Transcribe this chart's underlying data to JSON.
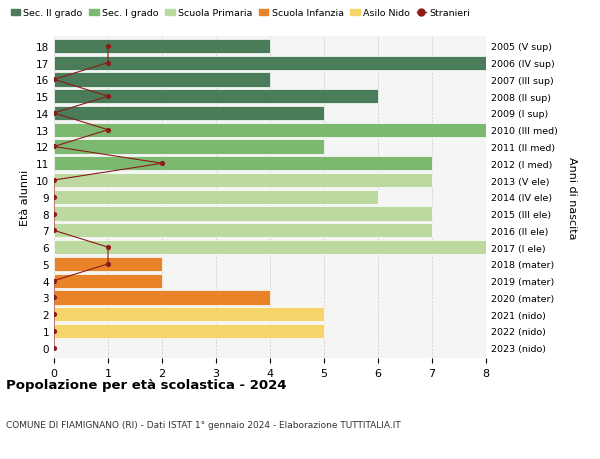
{
  "ages": [
    18,
    17,
    16,
    15,
    14,
    13,
    12,
    11,
    10,
    9,
    8,
    7,
    6,
    5,
    4,
    3,
    2,
    1,
    0
  ],
  "right_labels": [
    "2005 (V sup)",
    "2006 (IV sup)",
    "2007 (III sup)",
    "2008 (II sup)",
    "2009 (I sup)",
    "2010 (III med)",
    "2011 (II med)",
    "2012 (I med)",
    "2013 (V ele)",
    "2014 (IV ele)",
    "2015 (III ele)",
    "2016 (II ele)",
    "2017 (I ele)",
    "2018 (mater)",
    "2019 (mater)",
    "2020 (mater)",
    "2021 (nido)",
    "2022 (nido)",
    "2023 (nido)"
  ],
  "bar_values": [
    4,
    8,
    4,
    6,
    5,
    8,
    5,
    7,
    7,
    6,
    7,
    7,
    8,
    2,
    2,
    4,
    5,
    5,
    0
  ],
  "stranieri_x": [
    1,
    1,
    0,
    1,
    0,
    1,
    0,
    2,
    0,
    0,
    0,
    0,
    1,
    1,
    0,
    0,
    0,
    0,
    0
  ],
  "bar_colors": [
    "#4a7c59",
    "#4a7c59",
    "#4a7c59",
    "#4a7c59",
    "#4a7c59",
    "#7db870",
    "#7db870",
    "#7db870",
    "#bcd9a0",
    "#bcd9a0",
    "#bcd9a0",
    "#bcd9a0",
    "#bcd9a0",
    "#e8832a",
    "#e8832a",
    "#e8832a",
    "#f5d56a",
    "#f5d56a",
    "#f5d56a"
  ],
  "color_sec2": "#4a7c59",
  "color_sec1": "#7db870",
  "color_primaria": "#bcd9a0",
  "color_infanzia": "#e8832a",
  "color_nido": "#f5d56a",
  "color_stranieri": "#8b1a1a",
  "title": "Popolazione per età scolastica - 2024",
  "subtitle": "COMUNE DI FIAMIGNANO (RI) - Dati ISTAT 1° gennaio 2024 - Elaborazione TUTTITALIA.IT",
  "ylabel": "Età alunni",
  "ylabel_right": "Anni di nascita",
  "xlim": [
    0,
    8
  ],
  "xticks": [
    0,
    1,
    2,
    3,
    4,
    5,
    6,
    7,
    8
  ],
  "legend_labels": [
    "Sec. II grado",
    "Sec. I grado",
    "Scuola Primaria",
    "Scuola Infanzia",
    "Asilo Nido",
    "Stranieri"
  ],
  "bg_color": "#f5f5f5"
}
